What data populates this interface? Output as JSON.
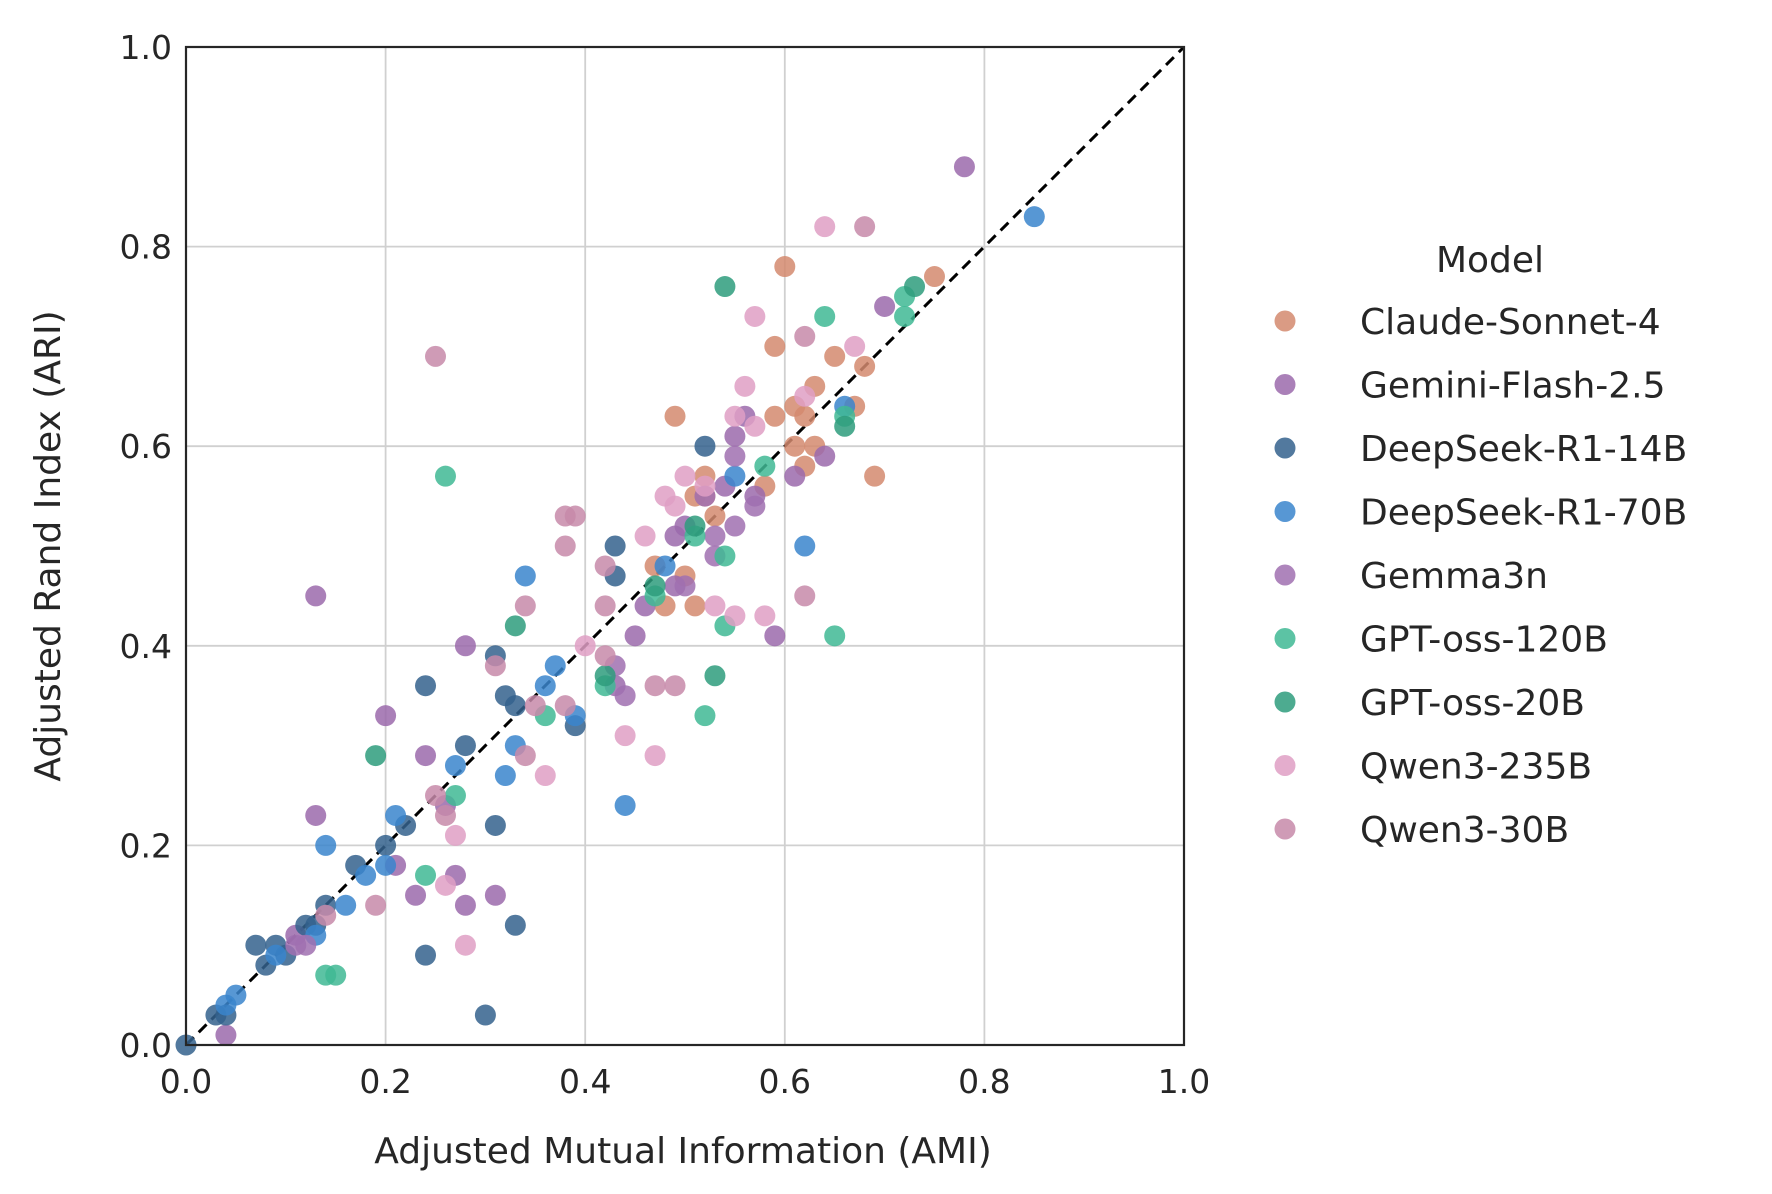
{
  "chart_data": {
    "type": "scatter",
    "xlabel": "Adjusted Mutual Information (AMI)",
    "ylabel": "Adjusted Rand Index (ARI)",
    "xlim": [
      0,
      1
    ],
    "ylim": [
      0,
      1
    ],
    "x_ticks": [
      "0.0",
      "0.2",
      "0.4",
      "0.6",
      "0.8",
      "1.0"
    ],
    "y_ticks": [
      "0.0",
      "0.2",
      "0.4",
      "0.6",
      "0.8",
      "1.0"
    ],
    "grid": true,
    "reference_line": "diagonal dashed y = x",
    "legend_title": "Model",
    "legend_position": "right outside",
    "series": [
      {
        "name": "Claude-Sonnet-4",
        "color": "#d38a6f",
        "points": [
          [
            0.6,
            0.78
          ],
          [
            0.75,
            0.77
          ],
          [
            0.68,
            0.68
          ],
          [
            0.65,
            0.69
          ],
          [
            0.63,
            0.66
          ],
          [
            0.67,
            0.64
          ],
          [
            0.59,
            0.7
          ],
          [
            0.61,
            0.64
          ],
          [
            0.59,
            0.63
          ],
          [
            0.62,
            0.63
          ],
          [
            0.61,
            0.6
          ],
          [
            0.63,
            0.6
          ],
          [
            0.62,
            0.58
          ],
          [
            0.69,
            0.57
          ],
          [
            0.49,
            0.63
          ],
          [
            0.52,
            0.57
          ],
          [
            0.51,
            0.55
          ],
          [
            0.52,
            0.55
          ],
          [
            0.53,
            0.53
          ],
          [
            0.58,
            0.56
          ],
          [
            0.47,
            0.48
          ],
          [
            0.48,
            0.44
          ],
          [
            0.51,
            0.44
          ],
          [
            0.5,
            0.47
          ]
        ]
      },
      {
        "name": "Gemini-Flash-2.5",
        "color": "#9b6aab",
        "points": [
          [
            0.78,
            0.88
          ],
          [
            0.7,
            0.74
          ],
          [
            0.56,
            0.63
          ],
          [
            0.55,
            0.61
          ],
          [
            0.57,
            0.55
          ],
          [
            0.54,
            0.56
          ],
          [
            0.49,
            0.51
          ],
          [
            0.5,
            0.52
          ],
          [
            0.46,
            0.44
          ],
          [
            0.45,
            0.41
          ],
          [
            0.59,
            0.41
          ],
          [
            0.64,
            0.59
          ],
          [
            0.61,
            0.57
          ],
          [
            0.49,
            0.46
          ],
          [
            0.43,
            0.36
          ],
          [
            0.28,
            0.4
          ],
          [
            0.2,
            0.33
          ],
          [
            0.24,
            0.29
          ],
          [
            0.13,
            0.45
          ],
          [
            0.13,
            0.23
          ],
          [
            0.21,
            0.18
          ],
          [
            0.23,
            0.15
          ],
          [
            0.27,
            0.17
          ],
          [
            0.28,
            0.14
          ],
          [
            0.31,
            0.15
          ],
          [
            0.11,
            0.11
          ],
          [
            0.04,
            0.01
          ],
          [
            0.26,
            0.24
          ]
        ]
      },
      {
        "name": "DeepSeek-R1-14B",
        "color": "#34618d",
        "points": [
          [
            0.52,
            0.6
          ],
          [
            0.43,
            0.5
          ],
          [
            0.43,
            0.47
          ],
          [
            0.31,
            0.39
          ],
          [
            0.32,
            0.35
          ],
          [
            0.24,
            0.36
          ],
          [
            0.28,
            0.3
          ],
          [
            0.33,
            0.34
          ],
          [
            0.39,
            0.32
          ],
          [
            0.31,
            0.22
          ],
          [
            0.33,
            0.12
          ],
          [
            0.24,
            0.09
          ],
          [
            0.3,
            0.03
          ],
          [
            0.2,
            0.2
          ],
          [
            0.17,
            0.18
          ],
          [
            0.22,
            0.22
          ],
          [
            0.14,
            0.14
          ],
          [
            0.13,
            0.12
          ],
          [
            0.12,
            0.12
          ],
          [
            0.09,
            0.1
          ],
          [
            0.08,
            0.08
          ],
          [
            0.07,
            0.1
          ],
          [
            0.1,
            0.09
          ],
          [
            0.04,
            0.03
          ],
          [
            0.03,
            0.03
          ],
          [
            0.0,
            0.0
          ]
        ]
      },
      {
        "name": "DeepSeek-R1-70B",
        "color": "#3a85cc",
        "points": [
          [
            0.85,
            0.83
          ],
          [
            0.66,
            0.64
          ],
          [
            0.55,
            0.57
          ],
          [
            0.62,
            0.5
          ],
          [
            0.48,
            0.48
          ],
          [
            0.34,
            0.47
          ],
          [
            0.37,
            0.38
          ],
          [
            0.36,
            0.36
          ],
          [
            0.39,
            0.33
          ],
          [
            0.33,
            0.3
          ],
          [
            0.32,
            0.27
          ],
          [
            0.27,
            0.28
          ],
          [
            0.44,
            0.24
          ],
          [
            0.21,
            0.23
          ],
          [
            0.2,
            0.18
          ],
          [
            0.18,
            0.17
          ],
          [
            0.14,
            0.2
          ],
          [
            0.16,
            0.14
          ],
          [
            0.13,
            0.11
          ],
          [
            0.09,
            0.09
          ],
          [
            0.05,
            0.05
          ],
          [
            0.04,
            0.04
          ]
        ]
      },
      {
        "name": "Gemma3n",
        "color": "#a070b0",
        "points": [
          [
            0.55,
            0.52
          ],
          [
            0.53,
            0.51
          ],
          [
            0.57,
            0.54
          ],
          [
            0.53,
            0.49
          ],
          [
            0.55,
            0.59
          ],
          [
            0.44,
            0.35
          ],
          [
            0.43,
            0.38
          ],
          [
            0.52,
            0.55
          ],
          [
            0.5,
            0.46
          ],
          [
            0.11,
            0.1
          ],
          [
            0.12,
            0.1
          ]
        ]
      },
      {
        "name": "GPT-oss-120B",
        "color": "#3fb894",
        "points": [
          [
            0.72,
            0.75
          ],
          [
            0.72,
            0.73
          ],
          [
            0.64,
            0.73
          ],
          [
            0.66,
            0.63
          ],
          [
            0.58,
            0.58
          ],
          [
            0.51,
            0.51
          ],
          [
            0.54,
            0.49
          ],
          [
            0.54,
            0.42
          ],
          [
            0.65,
            0.41
          ],
          [
            0.52,
            0.33
          ],
          [
            0.36,
            0.33
          ],
          [
            0.26,
            0.57
          ],
          [
            0.27,
            0.25
          ],
          [
            0.24,
            0.17
          ],
          [
            0.14,
            0.07
          ],
          [
            0.15,
            0.07
          ],
          [
            0.42,
            0.36
          ],
          [
            0.47,
            0.45
          ]
        ]
      },
      {
        "name": "GPT-oss-20B",
        "color": "#2e9c7c",
        "points": [
          [
            0.54,
            0.76
          ],
          [
            0.73,
            0.76
          ],
          [
            0.66,
            0.62
          ],
          [
            0.51,
            0.52
          ],
          [
            0.33,
            0.42
          ],
          [
            0.19,
            0.29
          ],
          [
            0.42,
            0.37
          ],
          [
            0.53,
            0.37
          ],
          [
            0.47,
            0.46
          ]
        ]
      },
      {
        "name": "Qwen3-235B",
        "color": "#df9fc4",
        "points": [
          [
            0.64,
            0.82
          ],
          [
            0.57,
            0.73
          ],
          [
            0.67,
            0.7
          ],
          [
            0.56,
            0.66
          ],
          [
            0.55,
            0.63
          ],
          [
            0.57,
            0.62
          ],
          [
            0.62,
            0.65
          ],
          [
            0.5,
            0.57
          ],
          [
            0.52,
            0.56
          ],
          [
            0.48,
            0.55
          ],
          [
            0.49,
            0.54
          ],
          [
            0.46,
            0.51
          ],
          [
            0.53,
            0.44
          ],
          [
            0.55,
            0.43
          ],
          [
            0.58,
            0.43
          ],
          [
            0.44,
            0.31
          ],
          [
            0.47,
            0.29
          ],
          [
            0.36,
            0.27
          ],
          [
            0.27,
            0.21
          ],
          [
            0.28,
            0.1
          ],
          [
            0.26,
            0.16
          ],
          [
            0.4,
            0.4
          ]
        ]
      },
      {
        "name": "Qwen3-30B",
        "color": "#c78aa9",
        "points": [
          [
            0.25,
            0.69
          ],
          [
            0.68,
            0.82
          ],
          [
            0.62,
            0.71
          ],
          [
            0.38,
            0.53
          ],
          [
            0.39,
            0.53
          ],
          [
            0.38,
            0.5
          ],
          [
            0.42,
            0.48
          ],
          [
            0.42,
            0.44
          ],
          [
            0.34,
            0.44
          ],
          [
            0.31,
            0.38
          ],
          [
            0.42,
            0.39
          ],
          [
            0.38,
            0.34
          ],
          [
            0.34,
            0.29
          ],
          [
            0.25,
            0.25
          ],
          [
            0.26,
            0.23
          ],
          [
            0.19,
            0.14
          ],
          [
            0.14,
            0.13
          ],
          [
            0.62,
            0.45
          ],
          [
            0.47,
            0.36
          ],
          [
            0.49,
            0.36
          ],
          [
            0.35,
            0.34
          ]
        ]
      }
    ]
  }
}
